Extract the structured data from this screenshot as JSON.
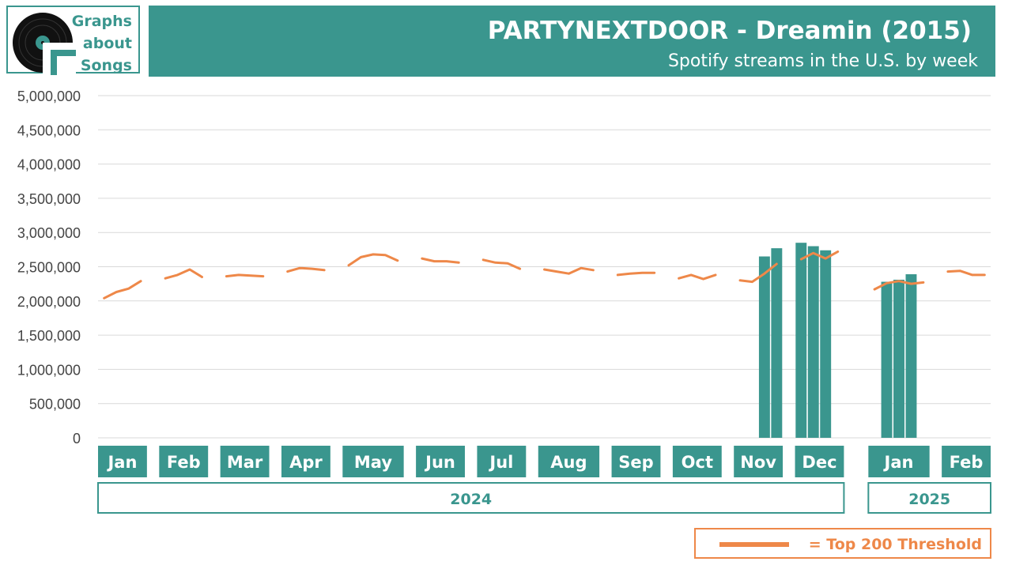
{
  "logo": {
    "line1": "Graphs",
    "line2": "about",
    "line3": "Songs"
  },
  "header": {
    "title": "PARTYNEXTDOOR - Dreamin (2015)",
    "subtitle": "Spotify streams in the U.S. by week"
  },
  "legend": {
    "label": "= Top 200 Threshold"
  },
  "colors": {
    "teal": "#3a968e",
    "orange": "#ee8849",
    "grid": "#d9d9d9"
  },
  "chart_data": {
    "type": "bar",
    "ylim": [
      0,
      5000000
    ],
    "y_ticks": [
      "0",
      "500,000",
      "1,000,000",
      "1,500,000",
      "2,000,000",
      "2,500,000",
      "3,000,000",
      "3,500,000",
      "4,000,000",
      "4,500,000",
      "5,000,000"
    ],
    "months": [
      {
        "label": "Jan",
        "weeks": 4
      },
      {
        "label": "Feb",
        "weeks": 4
      },
      {
        "label": "Mar",
        "weeks": 4
      },
      {
        "label": "Apr",
        "weeks": 4
      },
      {
        "label": "May",
        "weeks": 5
      },
      {
        "label": "Jun",
        "weeks": 4
      },
      {
        "label": "Jul",
        "weeks": 4
      },
      {
        "label": "Aug",
        "weeks": 5
      },
      {
        "label": "Sep",
        "weeks": 4
      },
      {
        "label": "Oct",
        "weeks": 4
      },
      {
        "label": "Nov",
        "weeks": 4
      },
      {
        "label": "Dec",
        "weeks": 4
      },
      {
        "label": "Jan",
        "weeks": 5
      },
      {
        "label": "Feb",
        "weeks": 4
      }
    ],
    "years": [
      {
        "label": "2024",
        "start_month": 0,
        "end_month": 11
      },
      {
        "label": "2025",
        "start_month": 12,
        "end_month": 13
      }
    ],
    "series": [
      {
        "kind": "bars",
        "values": [
          null,
          null,
          null,
          null,
          null,
          null,
          null,
          null,
          null,
          null,
          null,
          null,
          null,
          null,
          null,
          null,
          null,
          null,
          null,
          null,
          null,
          null,
          null,
          null,
          null,
          null,
          null,
          null,
          null,
          null,
          null,
          null,
          null,
          null,
          null,
          null,
          null,
          null,
          null,
          null,
          null,
          null,
          null,
          null,
          2650000,
          2770000,
          2850000,
          2800000,
          2740000,
          null,
          null,
          2280000,
          2310000,
          2390000,
          null,
          null,
          null,
          null,
          null
        ]
      },
      {
        "name": "Top 200 Threshold",
        "kind": "line",
        "values": [
          2040000,
          2130000,
          2180000,
          2290000,
          2330000,
          2380000,
          2460000,
          2350000,
          2360000,
          2380000,
          2370000,
          2360000,
          2430000,
          2480000,
          2470000,
          2450000,
          2520000,
          2640000,
          2680000,
          2670000,
          2590000,
          2620000,
          2580000,
          2580000,
          2560000,
          2600000,
          2560000,
          2550000,
          2470000,
          2460000,
          2430000,
          2400000,
          2480000,
          2450000,
          2380000,
          2400000,
          2410000,
          2410000,
          2330000,
          2380000,
          2320000,
          2380000,
          2300000,
          2280000,
          2400000,
          2540000,
          2610000,
          2700000,
          2620000,
          2720000,
          2170000,
          2260000,
          2290000,
          2250000,
          2270000,
          2430000,
          2440000,
          2380000,
          2380000
        ]
      }
    ]
  }
}
